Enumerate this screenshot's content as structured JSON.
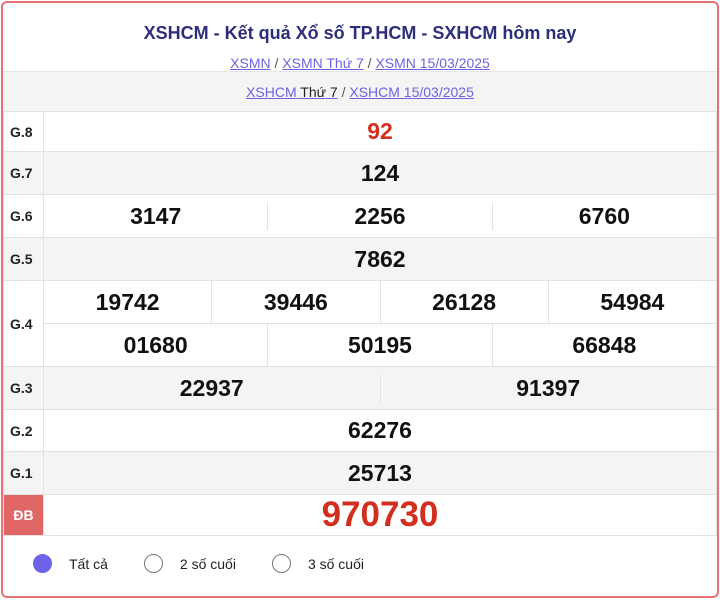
{
  "header": {
    "title": "XSHCM - Kết quả Xổ số TP.HCM - SXHCM hôm nay",
    "breadcrumb": [
      "XSMN",
      "XSMN Thứ 7",
      "XSMN 15/03/2025"
    ],
    "sep": "/"
  },
  "subnav": {
    "link1": "XSHCM",
    "text1": "Thứ 7",
    "link2": "XSHCM 15/03/2025"
  },
  "prizes": [
    {
      "label": "G.8",
      "numbers": [
        "92"
      ]
    },
    {
      "label": "G.7",
      "numbers": [
        "124"
      ]
    },
    {
      "label": "G.6",
      "numbers": [
        "3147",
        "2256",
        "6760"
      ]
    },
    {
      "label": "G.5",
      "numbers": [
        "7862"
      ]
    },
    {
      "label": "G.4",
      "numbers": [
        "19742",
        "39446",
        "26128",
        "54984",
        "01680",
        "50195",
        "66848"
      ]
    },
    {
      "label": "G.3",
      "numbers": [
        "22937",
        "91397"
      ]
    },
    {
      "label": "G.2",
      "numbers": [
        "62276"
      ]
    },
    {
      "label": "G.1",
      "numbers": [
        "25713"
      ]
    },
    {
      "label": "ĐB",
      "numbers": [
        "970730"
      ]
    }
  ],
  "options": [
    {
      "label": "Tất cả",
      "selected": true
    },
    {
      "label": "2 số cuối",
      "selected": false
    },
    {
      "label": "3 số cuối",
      "selected": false
    }
  ],
  "colors": {
    "accent": "#6c63e0",
    "special": "#d32f1f",
    "title": "#2c2f7a"
  }
}
